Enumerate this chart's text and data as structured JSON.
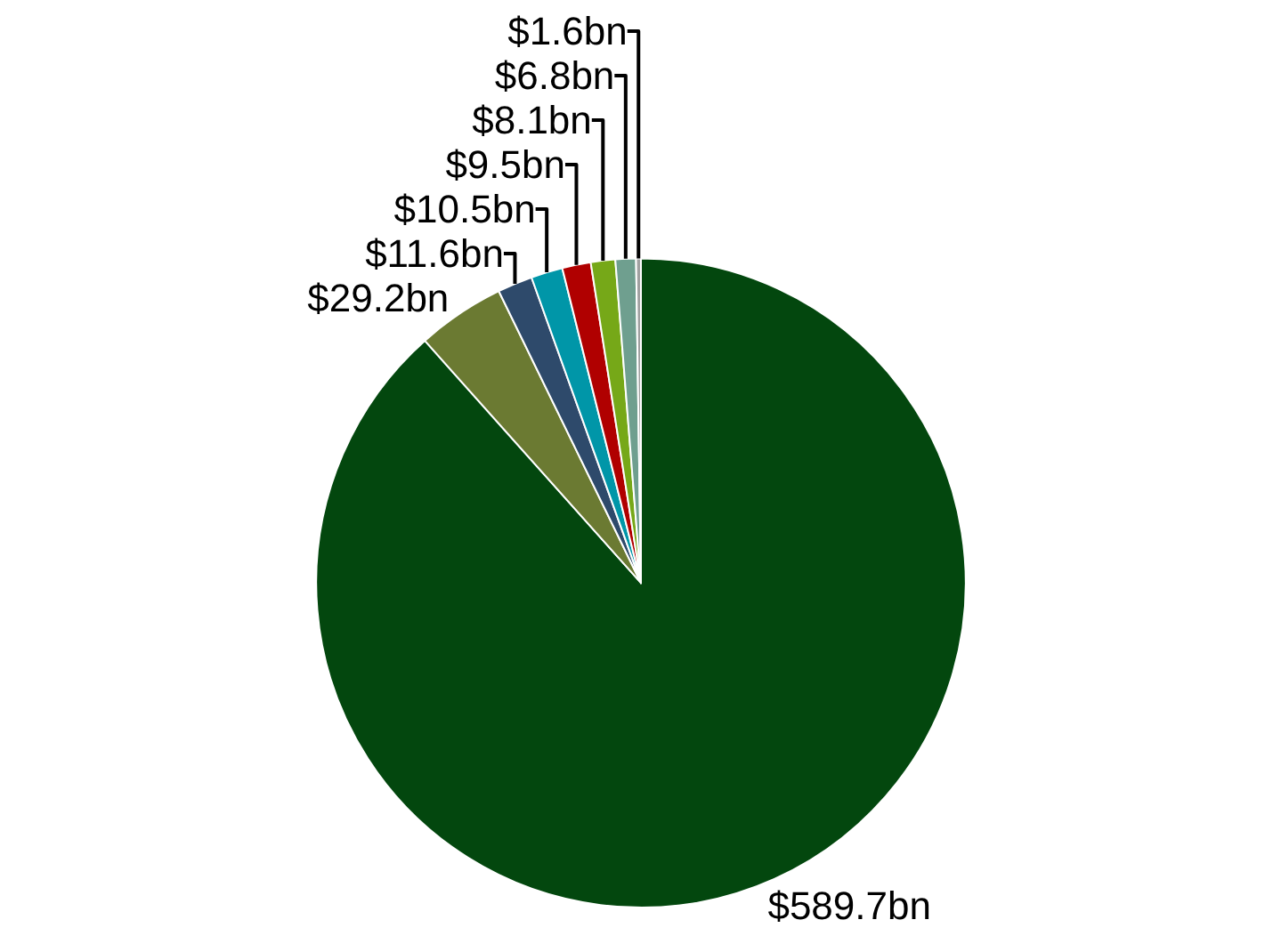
{
  "chart_data": {
    "type": "pie",
    "categories": [
      null,
      null,
      null,
      null,
      null,
      null,
      null,
      null
    ],
    "values": [
      589.7,
      29.2,
      11.6,
      10.5,
      9.5,
      8.1,
      6.8,
      1.6
    ],
    "value_labels": [
      "$589.7bn",
      "$29.2bn",
      "$11.6bn",
      "$10.5bn",
      "$9.5bn",
      "$8.1bn",
      "$6.8bn",
      "$1.6bn"
    ],
    "colors": [
      "#03470e",
      "#6b7a32",
      "#2e4a6b",
      "#0096a8",
      "#b00000",
      "#76a818",
      "#6f9f8f",
      "#a0a0a0"
    ],
    "legend": false
  }
}
